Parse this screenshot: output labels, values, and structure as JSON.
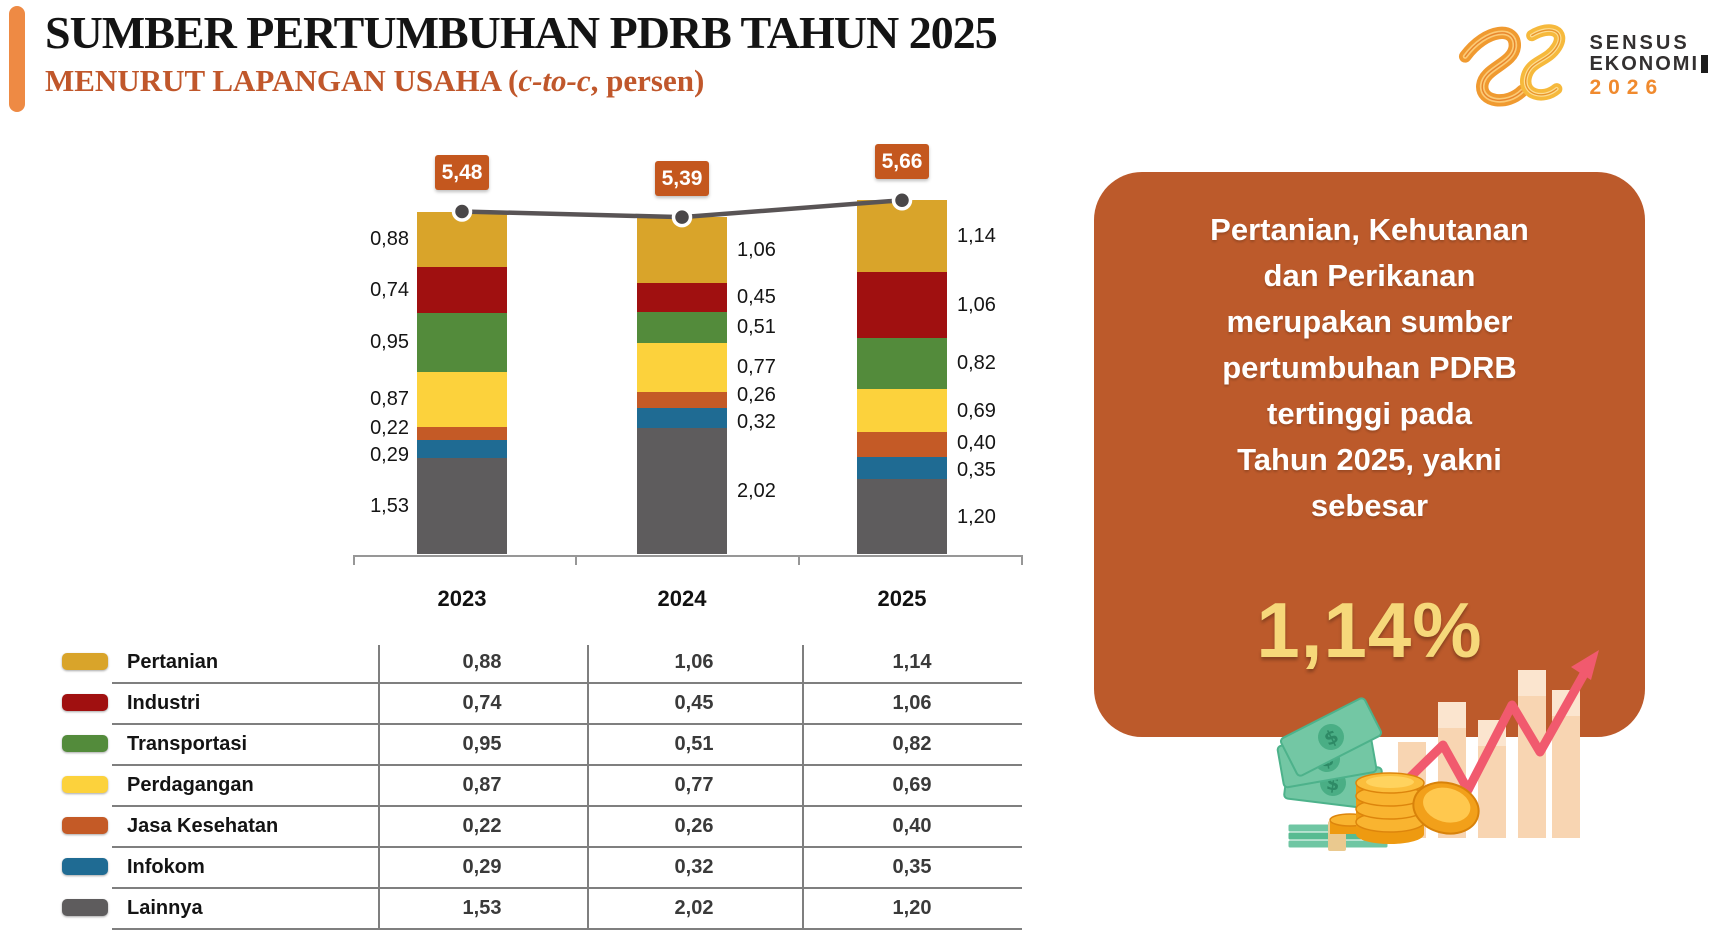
{
  "header": {
    "title": "SUMBER PERTUMBUHAN PDRB TAHUN 2025",
    "subtitle_prefix": "MENURUT LAPANGAN USAHA (",
    "subtitle_italic": "c-to-c",
    "subtitle_suffix": ", persen)"
  },
  "logo": {
    "line1": "SENSUS",
    "line2": "EKONOMI",
    "year": "2026"
  },
  "chart_data": {
    "type": "bar",
    "stacked": true,
    "unit": "persen",
    "decimal_style": "comma",
    "categories": [
      "2023",
      "2024",
      "2025"
    ],
    "series": [
      {
        "name": "Pertanian",
        "color": "#D9A42A",
        "values": [
          0.88,
          1.06,
          1.14
        ]
      },
      {
        "name": "Industri",
        "color": "#A01010",
        "values": [
          0.74,
          0.45,
          1.06
        ]
      },
      {
        "name": "Transportasi",
        "color": "#538B3B",
        "values": [
          0.95,
          0.51,
          0.82
        ]
      },
      {
        "name": "Perdagangan",
        "color": "#FCD23C",
        "values": [
          0.87,
          0.77,
          0.69
        ]
      },
      {
        "name": "Jasa Kesehatan",
        "color": "#C45A26",
        "values": [
          0.22,
          0.26,
          0.4
        ]
      },
      {
        "name": "Infokom",
        "color": "#1F6B93",
        "values": [
          0.29,
          0.32,
          0.35
        ]
      },
      {
        "name": "Lainnya",
        "color": "#5E5C5D",
        "values": [
          1.53,
          2.02,
          1.2
        ]
      }
    ],
    "totals": {
      "values": [
        5.48,
        5.39,
        5.66
      ],
      "labels": [
        "5,48",
        "5,39",
        "5,66"
      ]
    },
    "line_color": "#595455",
    "marker_color": "#4A4748",
    "total_box_color": "#C4571E",
    "legend_position": "table-below",
    "grid": false
  },
  "panel": {
    "bg_color": "#BC5A2B",
    "lines": [
      "Pertanian, Kehutanan",
      "dan Perikanan",
      "merupakan sumber",
      "pertumbuhan PDRB",
      "tertinggi pada",
      "Tahun 2025, yakni",
      "sebesar"
    ],
    "highlight": "1,14%",
    "highlight_color": "#F6D87A"
  }
}
